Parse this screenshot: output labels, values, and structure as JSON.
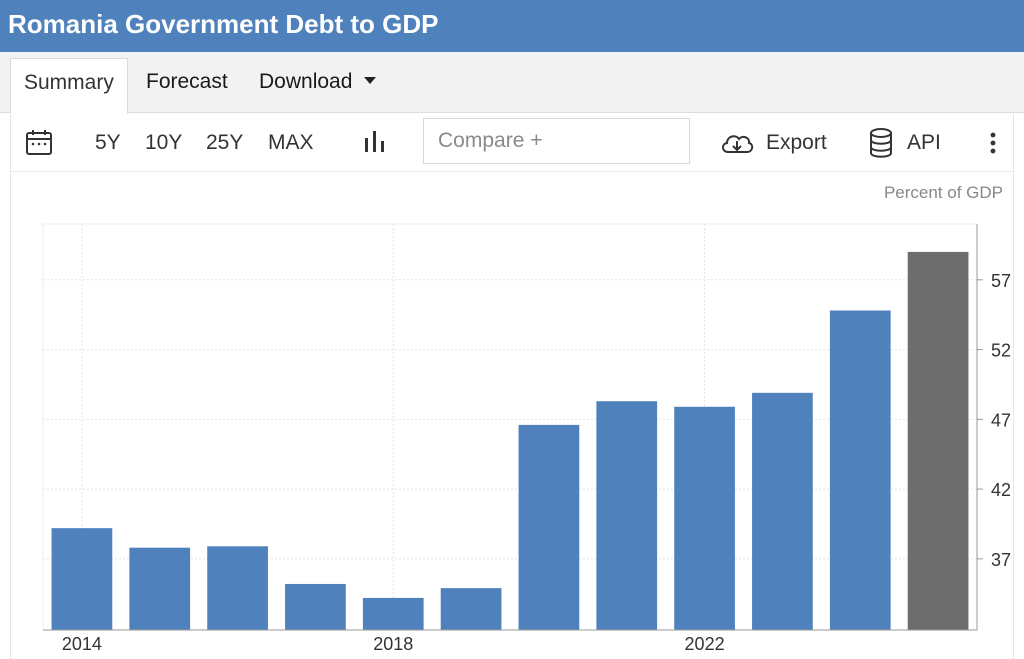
{
  "header": {
    "title": "Romania Government Debt to GDP"
  },
  "tabs": [
    {
      "label": "Summary"
    },
    {
      "label": "Forecast"
    },
    {
      "label": "Download"
    }
  ],
  "toolbar": {
    "range_buttons": [
      "5Y",
      "10Y",
      "25Y",
      "MAX"
    ],
    "compare_placeholder": "Compare +",
    "export_label": "Export",
    "api_label": "API",
    "icons": [
      "calendar-icon",
      "bar-chart-icon",
      "cloud-download-icon",
      "database-icon",
      "more-vertical-icon"
    ]
  },
  "chart_data": {
    "type": "bar",
    "unit_label": "Percent of GDP",
    "categories": [
      "2014",
      "2015",
      "2016",
      "2017",
      "2018",
      "2019",
      "2020",
      "2021",
      "2022",
      "2023",
      "2024",
      "2025"
    ],
    "values": [
      39.2,
      37.8,
      37.9,
      35.2,
      34.2,
      34.9,
      46.6,
      48.3,
      47.9,
      48.9,
      54.8,
      59.0
    ],
    "x_tick_labels": [
      "2014",
      "2018",
      "2022"
    ],
    "y_tick_labels": [
      "37",
      "42",
      "47",
      "52",
      "57"
    ],
    "ylim": [
      31.9,
      61.0
    ],
    "colors": {
      "bar": "#4f81bd",
      "bar_last": "#6d6d6d"
    },
    "grid": true,
    "y_axis_side": "right"
  }
}
